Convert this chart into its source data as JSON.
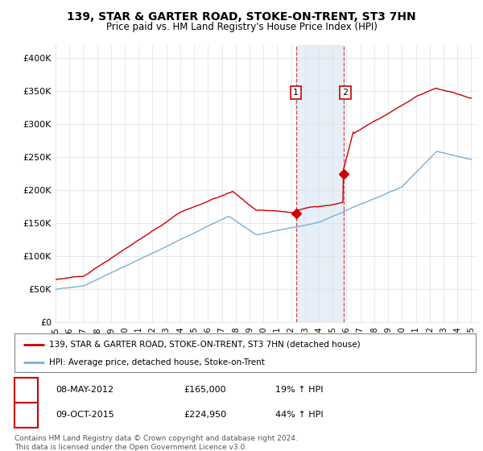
{
  "title": "139, STAR & GARTER ROAD, STOKE-ON-TRENT, ST3 7HN",
  "subtitle": "Price paid vs. HM Land Registry's House Price Index (HPI)",
  "ylabel_ticks": [
    "£0",
    "£50K",
    "£100K",
    "£150K",
    "£200K",
    "£250K",
    "£300K",
    "£350K",
    "£400K"
  ],
  "ytick_vals": [
    0,
    50000,
    100000,
    150000,
    200000,
    250000,
    300000,
    350000,
    400000
  ],
  "ylim": [
    0,
    420000
  ],
  "xlim_start": 1995.0,
  "xlim_end": 2025.5,
  "hpi_color": "#7bafd4",
  "price_color": "#cc0000",
  "transaction1": {
    "date": "2012-05-08",
    "price": 165000,
    "label": "1",
    "year": 2012.35
  },
  "transaction2": {
    "date": "2015-10-09",
    "price": 224950,
    "label": "2",
    "year": 2015.77
  },
  "legend_line1": "139, STAR & GARTER ROAD, STOKE-ON-TRENT, ST3 7HN (detached house)",
  "legend_line2": "HPI: Average price, detached house, Stoke-on-Trent",
  "table_row1": [
    "1",
    "08-MAY-2012",
    "£165,000",
    "19% ↑ HPI"
  ],
  "table_row2": [
    "2",
    "09-OCT-2015",
    "£224,950",
    "44% ↑ HPI"
  ],
  "footer": "Contains HM Land Registry data © Crown copyright and database right 2024.\nThis data is licensed under the Open Government Licence v3.0.",
  "background_color": "#ffffff",
  "grid_color": "#e0e0e0",
  "shade_color": "#dce8f5"
}
